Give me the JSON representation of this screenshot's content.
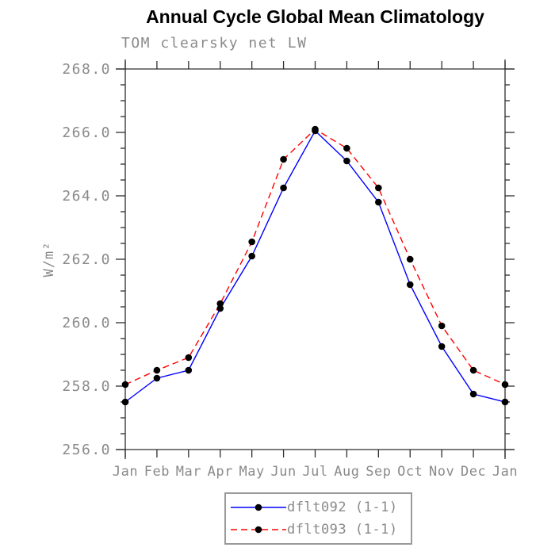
{
  "title": "Annual Cycle Global Mean Climatology",
  "subtitle": "TOM clearsky net LW",
  "colors": {
    "series1": "#0000ff",
    "series2": "#ff0000",
    "marker": "#000000",
    "axis": "#2e2e2e",
    "label_gray": "#8a8a8a",
    "title_black": "#000000",
    "legend_border": "#9a9a9a"
  },
  "legend": {
    "items": [
      {
        "label": "dflt092 (1-1)",
        "color": "#0000ff",
        "line_style": "solid",
        "marker": "black-dot"
      },
      {
        "label": "dflt093 (1-1)",
        "color": "#ff0000",
        "line_style": "dashed",
        "marker": "black-dot"
      }
    ]
  },
  "chart_data": {
    "type": "line",
    "title": "Annual Cycle Global Mean Climatology",
    "subtitle": "TOM clearsky net LW",
    "xlabel": "",
    "ylabel": "W/m²",
    "categories": [
      "Jan",
      "Feb",
      "Mar",
      "Apr",
      "May",
      "Jun",
      "Jul",
      "Aug",
      "Sep",
      "Oct",
      "Nov",
      "Dec",
      "Jan"
    ],
    "series": [
      {
        "name": "dflt092 (1-1)",
        "color": "#0000ff",
        "line_style": "solid",
        "marker": "black-dot",
        "values": [
          257.5,
          258.25,
          258.5,
          260.45,
          262.1,
          264.25,
          266.05,
          265.1,
          263.8,
          261.2,
          259.25,
          257.75,
          257.5
        ]
      },
      {
        "name": "dflt093 (1-1)",
        "color": "#ff0000",
        "line_style": "dashed",
        "marker": "black-dot",
        "values": [
          258.05,
          258.5,
          258.9,
          260.6,
          262.55,
          265.15,
          266.1,
          265.5,
          264.25,
          262.0,
          259.9,
          258.5,
          258.05
        ]
      }
    ],
    "ylim": [
      256.0,
      268.0
    ],
    "ytick_step": 2.0,
    "yminor_step": 0.5,
    "ytick_labels": [
      "256.0",
      "258.0",
      "260.0",
      "262.0",
      "264.0",
      "266.0",
      "268.0"
    ],
    "grid": false,
    "legend_position": "bottom-center"
  }
}
